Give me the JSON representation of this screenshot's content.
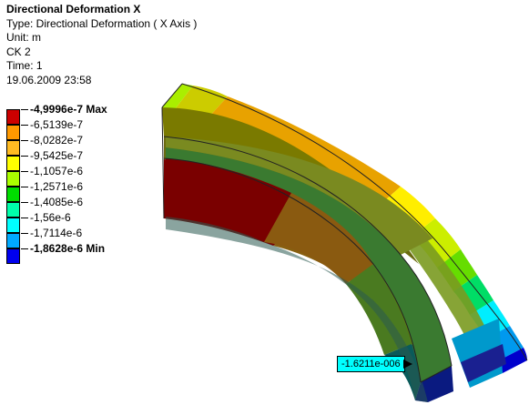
{
  "info": {
    "title": "Directional Deformation X",
    "type_line": "Type: Directional Deformation ( X Axis )",
    "unit_line": "Unit: m",
    "ck_line": "CK 2",
    "time_line": "Time: 1",
    "date_line": "19.06.2009 23:58"
  },
  "legend": {
    "labels": [
      {
        "text": "-4,9996e-7 Max",
        "bold": true
      },
      {
        "text": "-6,5139e-7",
        "bold": false
      },
      {
        "text": "-8,0282e-7",
        "bold": false
      },
      {
        "text": "-9,5425e-7",
        "bold": false
      },
      {
        "text": "-1,1057e-6",
        "bold": false
      },
      {
        "text": "-1,2571e-6",
        "bold": false
      },
      {
        "text": "-1,4085e-6",
        "bold": false
      },
      {
        "text": "-1,56e-6",
        "bold": false
      },
      {
        "text": "-1,7114e-6",
        "bold": false
      },
      {
        "text": "-1,8628e-6 Min",
        "bold": true
      }
    ],
    "colors": [
      "#cc0000",
      "#ff9900",
      "#ffbb22",
      "#ffff00",
      "#aaff00",
      "#00dd00",
      "#00ffaa",
      "#00ffff",
      "#00aaff",
      "#0000ee"
    ]
  },
  "probe": {
    "label": "-1.6211e-006"
  }
}
